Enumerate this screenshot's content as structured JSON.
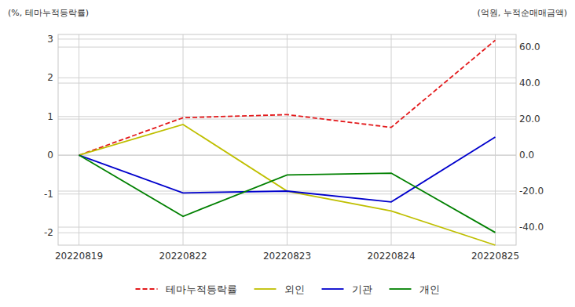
{
  "chart_data": {
    "type": "line",
    "y_label": "(%, 테마누적등락률)",
    "y2_label": "(억원, 누적순매매금액)",
    "categories": [
      "20220819",
      "20220822",
      "20220823",
      "20220824",
      "20220825"
    ],
    "series": [
      {
        "name": "테마누적등락률",
        "color": "#e31a1c",
        "line_style": "dashed",
        "axis": "y",
        "values": [
          0,
          0.97,
          1.05,
          0.72,
          2.97
        ]
      },
      {
        "name": "외인",
        "color": "#bfbf00",
        "line_style": "solid",
        "axis": "y2",
        "values": [
          0,
          17,
          -20,
          -31,
          -50
        ]
      },
      {
        "name": "기관",
        "color": "#0000cc",
        "line_style": "solid",
        "axis": "y2",
        "values": [
          0,
          -21,
          -20,
          -26,
          10
        ]
      },
      {
        "name": "개인",
        "color": "#008000",
        "line_style": "solid",
        "axis": "y2",
        "values": [
          0,
          -34,
          -11,
          -10,
          -43
        ]
      }
    ],
    "ylim": [
      -2.32,
      3.12
    ],
    "yticks": [
      -2,
      -1,
      0,
      1,
      2,
      3
    ],
    "y2lim": [
      -50,
      67
    ],
    "y2ticks": [
      {
        "value": -40,
        "label": "-40.0"
      },
      {
        "value": -20,
        "label": "-20.0"
      },
      {
        "value": 0,
        "label": "0.0"
      },
      {
        "value": 20,
        "label": "20.0"
      },
      {
        "value": 40,
        "label": "40.0"
      },
      {
        "value": 60,
        "label": "60.0"
      }
    ],
    "grid": true,
    "legend": "bottom"
  }
}
